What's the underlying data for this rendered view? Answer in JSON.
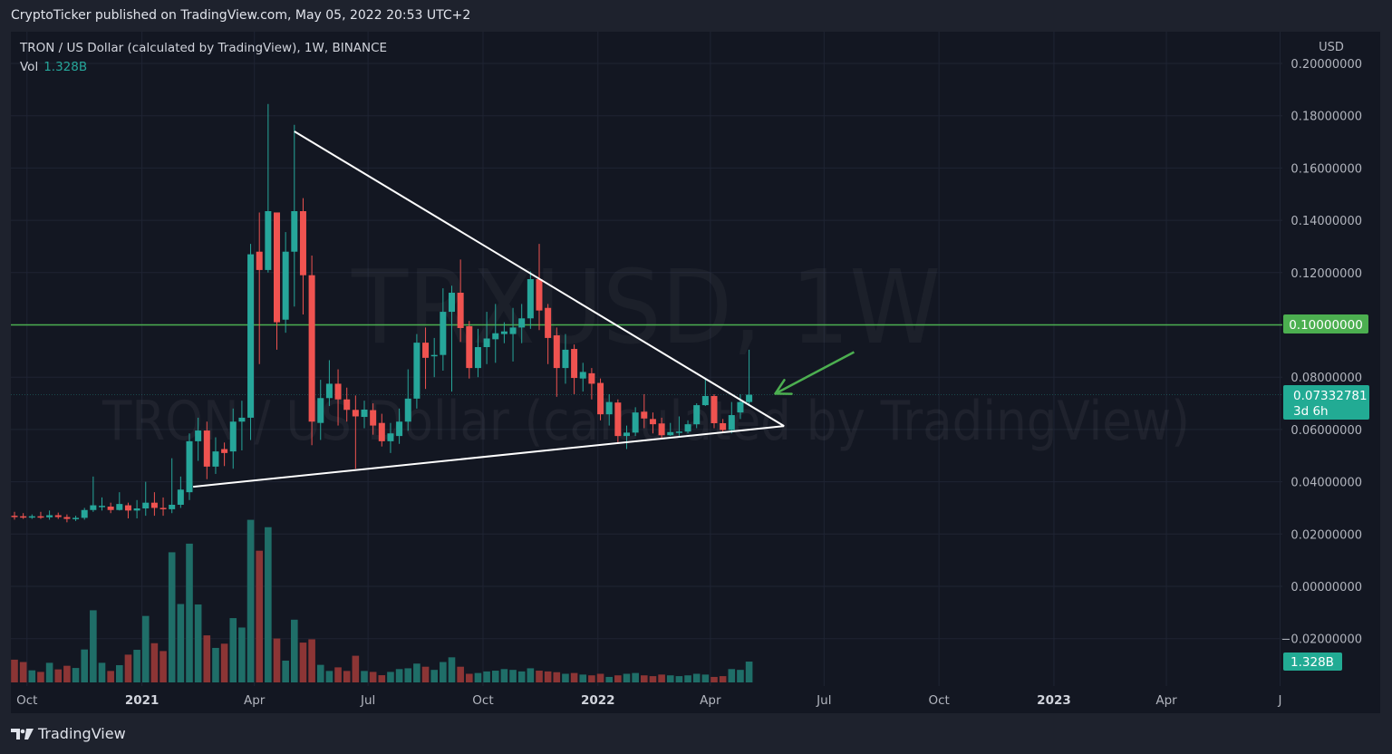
{
  "header": {
    "published": "CryptoTicker published on TradingView.com, May 05, 2022 20:53 UTC+2"
  },
  "legend": {
    "symbol": "TRON / US Dollar (calculated by TradingView), 1W, BINANCE",
    "vol_label": "Vol",
    "vol_value": "1.328B"
  },
  "watermark": {
    "line1": "TRXUSD, 1W",
    "line2": "TRON / US Dollar (calculated by TradingView)"
  },
  "footer": {
    "brand": "TradingView",
    "logo_icon": "tradingview-logo-icon"
  },
  "colors": {
    "up": "#26a69a",
    "down": "#ef5350",
    "vol_up": "#1f6e68",
    "vol_down": "#8c3535",
    "level_line": "#4caf50",
    "trendline": "#ffffff",
    "arrow": "#4caf50",
    "background": "#131722"
  },
  "chart_data": {
    "type": "candlestick",
    "interval": "1W",
    "currency": "USD",
    "ylim": [
      -0.03,
      0.21
    ],
    "y_ticks": [
      "0.20000000",
      "0.18000000",
      "0.16000000",
      "0.14000000",
      "0.12000000",
      "0.10000000",
      "0.08000000",
      "0.06000000",
      "0.04000000",
      "0.02000000",
      "0.00000000",
      "−0.02000000"
    ],
    "y_tick_values": [
      0.2,
      0.18,
      0.16,
      0.14,
      0.12,
      0.1,
      0.08,
      0.06,
      0.04,
      0.02,
      0,
      -0.02
    ],
    "x_ticks": [
      {
        "label": "Oct",
        "date": "2020-10-01",
        "bold": false
      },
      {
        "label": "2021",
        "date": "2021-01-01",
        "bold": true
      },
      {
        "label": "Apr",
        "date": "2021-04-01",
        "bold": false
      },
      {
        "label": "Jul",
        "date": "2021-07-01",
        "bold": false
      },
      {
        "label": "Oct",
        "date": "2021-10-01",
        "bold": false
      },
      {
        "label": "2022",
        "date": "2022-01-01",
        "bold": true
      },
      {
        "label": "Apr",
        "date": "2022-04-01",
        "bold": false
      },
      {
        "label": "Jul",
        "date": "2022-07-01",
        "bold": false
      },
      {
        "label": "Oct",
        "date": "2022-10-01",
        "bold": false
      },
      {
        "label": "2023",
        "date": "2023-01-01",
        "bold": true
      },
      {
        "label": "Apr",
        "date": "2023-04-01",
        "bold": false
      },
      {
        "label": "J",
        "date": "2023-07-01",
        "bold": false
      }
    ],
    "candles_columns": [
      "date",
      "open",
      "high",
      "low",
      "close",
      "volume_B"
    ],
    "candles": [
      [
        "2020-09-21",
        0.027,
        0.0285,
        0.0255,
        0.0265,
        1.45
      ],
      [
        "2020-09-28",
        0.0268,
        0.028,
        0.0258,
        0.0265,
        1.3
      ],
      [
        "2020-10-05",
        0.0265,
        0.0275,
        0.0258,
        0.0268,
        0.77
      ],
      [
        "2020-10-12",
        0.0268,
        0.0285,
        0.0258,
        0.0264,
        0.67
      ],
      [
        "2020-10-19",
        0.0264,
        0.029,
        0.0255,
        0.0272,
        1.25
      ],
      [
        "2020-10-26",
        0.0272,
        0.0282,
        0.0258,
        0.0265,
        0.83
      ],
      [
        "2020-11-02",
        0.0265,
        0.0275,
        0.0245,
        0.0258,
        1.06
      ],
      [
        "2020-11-09",
        0.0258,
        0.027,
        0.025,
        0.0262,
        0.92
      ],
      [
        "2020-11-16",
        0.0262,
        0.03,
        0.0255,
        0.0292,
        2.1
      ],
      [
        "2020-11-23",
        0.0292,
        0.042,
        0.0285,
        0.031,
        4.6
      ],
      [
        "2020-11-30",
        0.0305,
        0.034,
        0.029,
        0.0308,
        1.25
      ],
      [
        "2020-12-07",
        0.0305,
        0.032,
        0.028,
        0.0292,
        0.73
      ],
      [
        "2020-12-14",
        0.0292,
        0.036,
        0.029,
        0.0315,
        1.1
      ],
      [
        "2020-12-21",
        0.031,
        0.032,
        0.026,
        0.029,
        1.77
      ],
      [
        "2020-12-28",
        0.029,
        0.033,
        0.026,
        0.0298,
        2.08
      ],
      [
        "2021-01-04",
        0.0298,
        0.04,
        0.027,
        0.032,
        4.24
      ],
      [
        "2021-01-11",
        0.032,
        0.036,
        0.027,
        0.03,
        2.5
      ],
      [
        "2021-01-18",
        0.03,
        0.034,
        0.027,
        0.0295,
        2.0
      ],
      [
        "2021-01-25",
        0.0295,
        0.049,
        0.028,
        0.0312,
        8.3
      ],
      [
        "2021-02-01",
        0.0312,
        0.042,
        0.03,
        0.037,
        5.0
      ],
      [
        "2021-02-08",
        0.036,
        0.0585,
        0.033,
        0.0555,
        8.85
      ],
      [
        "2021-02-15",
        0.0555,
        0.0645,
        0.048,
        0.0596,
        4.97
      ],
      [
        "2021-02-22",
        0.0596,
        0.063,
        0.041,
        0.0458,
        3.0
      ],
      [
        "2021-03-01",
        0.0458,
        0.057,
        0.043,
        0.0516,
        2.2
      ],
      [
        "2021-03-08",
        0.0525,
        0.055,
        0.046,
        0.051,
        2.47
      ],
      [
        "2021-03-15",
        0.0516,
        0.068,
        0.045,
        0.063,
        4.1
      ],
      [
        "2021-03-22",
        0.063,
        0.071,
        0.052,
        0.0645,
        3.5
      ],
      [
        "2021-03-29",
        0.0645,
        0.131,
        0.056,
        0.127,
        10.37
      ],
      [
        "2021-04-05",
        0.128,
        0.143,
        0.085,
        0.121,
        8.4
      ],
      [
        "2021-04-12",
        0.121,
        0.1845,
        0.12,
        0.1435,
        9.9
      ],
      [
        "2021-04-19",
        0.143,
        0.143,
        0.0905,
        0.101,
        2.8
      ],
      [
        "2021-04-26",
        0.102,
        0.1355,
        0.097,
        0.128,
        1.39
      ],
      [
        "2021-05-03",
        0.128,
        0.1765,
        0.107,
        0.1435,
        4.0
      ],
      [
        "2021-05-10",
        0.1435,
        0.1485,
        0.104,
        0.119,
        2.54
      ],
      [
        "2021-05-17",
        0.119,
        0.1265,
        0.054,
        0.063,
        2.75
      ],
      [
        "2021-05-24",
        0.0625,
        0.079,
        0.056,
        0.072,
        1.12
      ],
      [
        "2021-05-31",
        0.072,
        0.0865,
        0.069,
        0.0775,
        0.73
      ],
      [
        "2021-06-07",
        0.0775,
        0.083,
        0.0615,
        0.0715,
        0.96
      ],
      [
        "2021-06-14",
        0.0715,
        0.076,
        0.063,
        0.0675,
        0.73
      ],
      [
        "2021-06-21",
        0.0675,
        0.073,
        0.045,
        0.065,
        1.7
      ],
      [
        "2021-06-28",
        0.0648,
        0.071,
        0.0605,
        0.0676,
        0.73
      ],
      [
        "2021-07-05",
        0.0674,
        0.07,
        0.058,
        0.0615,
        0.67
      ],
      [
        "2021-07-12",
        0.0625,
        0.066,
        0.0535,
        0.0555,
        0.46
      ],
      [
        "2021-07-19",
        0.0555,
        0.0625,
        0.051,
        0.0585,
        0.67
      ],
      [
        "2021-07-26",
        0.0575,
        0.068,
        0.0545,
        0.063,
        0.85
      ],
      [
        "2021-08-02",
        0.063,
        0.083,
        0.0595,
        0.0718,
        0.9
      ],
      [
        "2021-08-09",
        0.0718,
        0.0965,
        0.068,
        0.0932,
        1.2
      ],
      [
        "2021-08-16",
        0.0932,
        0.099,
        0.0755,
        0.0874,
        1.0
      ],
      [
        "2021-08-23",
        0.088,
        0.095,
        0.08,
        0.0885,
        0.8
      ],
      [
        "2021-08-30",
        0.0885,
        0.114,
        0.0825,
        0.105,
        1.3
      ],
      [
        "2021-09-06",
        0.105,
        0.115,
        0.0745,
        0.1123,
        1.6
      ],
      [
        "2021-09-13",
        0.1123,
        0.125,
        0.0935,
        0.0988,
        1.0
      ],
      [
        "2021-09-20",
        0.0995,
        0.1015,
        0.0795,
        0.0835,
        0.55
      ],
      [
        "2021-09-27",
        0.0835,
        0.0985,
        0.08,
        0.0915,
        0.6
      ],
      [
        "2021-10-04",
        0.0915,
        0.105,
        0.085,
        0.0948,
        0.7
      ],
      [
        "2021-10-11",
        0.0945,
        0.108,
        0.0855,
        0.0968,
        0.75
      ],
      [
        "2021-10-18",
        0.0965,
        0.101,
        0.093,
        0.0975,
        0.85
      ],
      [
        "2021-10-25",
        0.0965,
        0.1065,
        0.086,
        0.099,
        0.8
      ],
      [
        "2021-11-01",
        0.099,
        0.108,
        0.093,
        0.1025,
        0.7
      ],
      [
        "2021-11-08",
        0.1025,
        0.1205,
        0.0985,
        0.1175,
        0.9
      ],
      [
        "2021-11-15",
        0.1175,
        0.131,
        0.098,
        0.1055,
        0.75
      ],
      [
        "2021-11-22",
        0.1065,
        0.108,
        0.085,
        0.095,
        0.7
      ],
      [
        "2021-11-29",
        0.096,
        0.099,
        0.0725,
        0.0835,
        0.65
      ],
      [
        "2021-12-06",
        0.0835,
        0.0965,
        0.0775,
        0.0905,
        0.55
      ],
      [
        "2021-12-13",
        0.0908,
        0.0925,
        0.0735,
        0.0797,
        0.6
      ],
      [
        "2021-12-20",
        0.0795,
        0.0855,
        0.0745,
        0.082,
        0.5
      ],
      [
        "2021-12-27",
        0.0815,
        0.0835,
        0.0715,
        0.0775,
        0.45
      ],
      [
        "2022-01-03",
        0.0778,
        0.0795,
        0.0635,
        0.0658,
        0.55
      ],
      [
        "2022-01-10",
        0.0658,
        0.0735,
        0.0615,
        0.0705,
        0.35
      ],
      [
        "2022-01-17",
        0.0703,
        0.0715,
        0.0545,
        0.0575,
        0.45
      ],
      [
        "2022-01-24",
        0.0575,
        0.0615,
        0.0525,
        0.0588,
        0.55
      ],
      [
        "2022-01-31",
        0.0588,
        0.0685,
        0.0575,
        0.0665,
        0.6
      ],
      [
        "2022-02-07",
        0.0668,
        0.0735,
        0.0605,
        0.0642,
        0.45
      ],
      [
        "2022-02-14",
        0.064,
        0.0665,
        0.0585,
        0.062,
        0.4
      ],
      [
        "2022-02-21",
        0.0623,
        0.0645,
        0.0565,
        0.0578,
        0.5
      ],
      [
        "2022-02-28",
        0.0578,
        0.0625,
        0.0575,
        0.059,
        0.45
      ],
      [
        "2022-03-07",
        0.059,
        0.065,
        0.0575,
        0.0592,
        0.4
      ],
      [
        "2022-03-14",
        0.0592,
        0.0635,
        0.0585,
        0.062,
        0.45
      ],
      [
        "2022-03-21",
        0.062,
        0.07,
        0.0605,
        0.0693,
        0.55
      ],
      [
        "2022-03-28",
        0.0693,
        0.0795,
        0.069,
        0.0728,
        0.5
      ],
      [
        "2022-04-04",
        0.0728,
        0.0735,
        0.0605,
        0.0624,
        0.35
      ],
      [
        "2022-04-11",
        0.0624,
        0.064,
        0.059,
        0.0598,
        0.4
      ],
      [
        "2022-04-18",
        0.0598,
        0.0705,
        0.0585,
        0.0655,
        0.85
      ],
      [
        "2022-04-25",
        0.0665,
        0.0735,
        0.064,
        0.0705,
        0.8
      ],
      [
        "2022-05-02",
        0.0705,
        0.0905,
        0.069,
        0.0733,
        1.328
      ]
    ],
    "horizontal_level": {
      "price": 0.1,
      "label": "0.10000000"
    },
    "last_price": {
      "label": "0.07332781",
      "countdown": "3d 6h",
      "price": 0.07332781
    },
    "volume_badge": "1.328B",
    "trendlines": [
      {
        "from": [
          "2021-05-03",
          0.174
        ],
        "to": [
          "2022-05-30",
          0.0613
        ]
      },
      {
        "from": [
          "2021-02-11",
          0.0381
        ],
        "to": [
          "2022-05-30",
          0.0613
        ]
      }
    ],
    "arrow": {
      "from": [
        "2022-07-25",
        0.0896
      ],
      "to": [
        "2022-05-23",
        0.0737
      ]
    },
    "grid": true
  }
}
